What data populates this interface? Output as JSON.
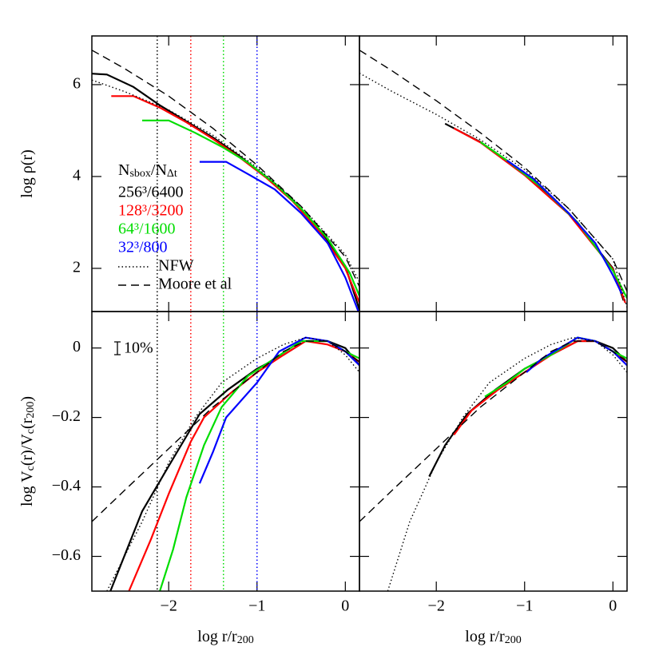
{
  "chart_data": [
    {
      "type": "line",
      "xlim": [
        -2.87,
        0.16
      ],
      "ylim": [
        1.06,
        7.06
      ],
      "xticks": [
        -2,
        -1,
        0
      ],
      "yticks": [
        2,
        4,
        6
      ],
      "show_xticklabels": false,
      "show_yticklabels": true,
      "ylabel_parts": [
        {
          "text": "log ρ(r)"
        }
      ],
      "vlines": [
        {
          "x": -2.13,
          "color": "#000000"
        },
        {
          "x": -1.75,
          "color": "#ff0000"
        },
        {
          "x": -1.38,
          "color": "#00dd00"
        },
        {
          "x": -1.0,
          "color": "#0000ff"
        }
      ],
      "legend_title_parts": [
        {
          "text": "N"
        },
        {
          "text": "sbox",
          "sub": true
        },
        {
          "text": "/N"
        },
        {
          "text": "Δt",
          "sub": true
        }
      ],
      "legend": "upper-left-middle",
      "series": [
        {
          "name": "256³/6400",
          "color": "#000000",
          "style": "solid",
          "x": [
            -2.87,
            -2.7,
            -2.4,
            -2.1,
            -1.8,
            -1.5,
            -1.2,
            -0.9,
            -0.6,
            -0.3,
            0,
            0.16
          ],
          "values": [
            6.24,
            6.22,
            5.95,
            5.55,
            5.2,
            4.85,
            4.45,
            4.0,
            3.5,
            2.85,
            2.05,
            1.1
          ]
        },
        {
          "name": "128³/3200",
          "color": "#ff0000",
          "style": "solid",
          "x": [
            -2.65,
            -2.4,
            -2.1,
            -1.8,
            -1.5,
            -1.2,
            -0.9,
            -0.6,
            -0.3,
            0,
            0.16
          ],
          "values": [
            5.75,
            5.75,
            5.5,
            5.18,
            4.82,
            4.42,
            3.98,
            3.47,
            2.82,
            2.0,
            1.25
          ]
        },
        {
          "name": "64³/1600",
          "color": "#00dd00",
          "style": "solid",
          "x": [
            -2.3,
            -2.0,
            -1.7,
            -1.4,
            -1.1,
            -0.8,
            -0.5,
            -0.2,
            0.05,
            0.16
          ],
          "values": [
            5.22,
            5.22,
            4.95,
            4.65,
            4.3,
            3.85,
            3.3,
            2.65,
            1.9,
            1.4
          ]
        },
        {
          "name": "32³/800",
          "color": "#0000ff",
          "style": "solid",
          "x": [
            -1.65,
            -1.35,
            -1.1,
            -0.8,
            -0.5,
            -0.2,
            0.0,
            0.15
          ],
          "values": [
            4.32,
            4.32,
            4.05,
            3.72,
            3.2,
            2.55,
            1.8,
            1.05
          ]
        },
        {
          "name": "NFW",
          "color": "#000000",
          "style": "dotted",
          "x": [
            -2.87,
            -2.5,
            -2.0,
            -1.5,
            -1.0,
            -0.5,
            0,
            0.16
          ],
          "values": [
            6.1,
            5.85,
            5.45,
            4.9,
            4.2,
            3.35,
            2.3,
            1.7
          ]
        },
        {
          "name": "Moore et al",
          "color": "#000000",
          "style": "dashed",
          "x": [
            -2.87,
            -2.5,
            -2.0,
            -1.5,
            -1.0,
            -0.5,
            0,
            0.16
          ],
          "values": [
            6.75,
            6.35,
            5.75,
            5.05,
            4.25,
            3.35,
            2.25,
            1.6
          ]
        }
      ]
    },
    {
      "type": "line",
      "xlim": [
        -2.87,
        0.16
      ],
      "ylim": [
        1.06,
        7.06
      ],
      "xticks": [
        -2,
        -1,
        0
      ],
      "yticks": [
        2,
        4,
        6
      ],
      "show_xticklabels": false,
      "show_yticklabels": false,
      "series": [
        {
          "color": "#000000",
          "style": "solid",
          "x": [
            -1.9,
            -1.5,
            -1.0,
            -0.5,
            0,
            0.12
          ],
          "values": [
            5.15,
            4.75,
            4.05,
            3.2,
            2.0,
            1.3
          ]
        },
        {
          "color": "#ff0000",
          "style": "solid",
          "x": [
            -1.8,
            -1.5,
            -1.0,
            -0.5,
            0,
            0.14
          ],
          "values": [
            5.05,
            4.74,
            4.03,
            3.18,
            1.98,
            1.25
          ]
        },
        {
          "color": "#00dd00",
          "style": "solid",
          "x": [
            -1.5,
            -1.2,
            -0.8,
            -0.4,
            0,
            0.16
          ],
          "values": [
            4.75,
            4.35,
            3.75,
            3.0,
            1.95,
            1.35
          ]
        },
        {
          "color": "#0000ff",
          "style": "solid",
          "x": [
            -1.2,
            -0.9,
            -0.5,
            -0.2,
            0.0,
            0.1
          ],
          "values": [
            4.35,
            3.95,
            3.2,
            2.55,
            1.85,
            1.45
          ]
        },
        {
          "color": "#000000",
          "style": "dotted",
          "x": [
            -2.87,
            -2.5,
            -2.0,
            -1.5,
            -1.0,
            -0.5,
            0,
            0.16
          ],
          "values": [
            6.25,
            5.85,
            5.35,
            4.8,
            4.15,
            3.3,
            2.2,
            1.15
          ]
        },
        {
          "color": "#000000",
          "style": "dashed",
          "x": [
            -2.87,
            -2.5,
            -2.0,
            -1.5,
            -1.0,
            -0.5,
            0,
            0.16
          ],
          "values": [
            6.75,
            6.3,
            5.65,
            4.95,
            4.2,
            3.3,
            2.2,
            1.5
          ]
        }
      ]
    },
    {
      "type": "line",
      "xlim": [
        -2.87,
        0.16
      ],
      "ylim": [
        -0.7,
        0.105
      ],
      "xticks": [
        {
          "value": -2,
          "label": "−2"
        },
        {
          "value": -1,
          "label": "−1"
        },
        0
      ],
      "yticks": [
        {
          "value": -0.6,
          "label": "−0.6"
        },
        {
          "value": -0.4,
          "label": "−0.4"
        },
        {
          "value": -0.2,
          "label": "−0.2"
        },
        0
      ],
      "show_xticklabels": true,
      "show_yticklabels": true,
      "xlabel_parts": [
        {
          "text": "log r/r"
        },
        {
          "text": "200",
          "sub": true
        }
      ],
      "ylabel_parts": [
        {
          "text": "log V"
        },
        {
          "text": "c",
          "sub": true
        },
        {
          "text": "(r)/V"
        },
        {
          "text": "c",
          "sub": true
        },
        {
          "text": "(r"
        },
        {
          "text": "200",
          "sub": true
        },
        {
          "text": ")"
        }
      ],
      "annotation": "10%",
      "vlines": [
        {
          "x": -2.13,
          "color": "#000000"
        },
        {
          "x": -1.75,
          "color": "#ff0000"
        },
        {
          "x": -1.38,
          "color": "#00dd00"
        },
        {
          "x": -1.0,
          "color": "#0000ff"
        }
      ],
      "series": [
        {
          "color": "#000000",
          "style": "solid",
          "x": [
            -2.66,
            -2.3,
            -2.0,
            -1.65,
            -1.33,
            -1.0,
            -0.7,
            -0.45,
            -0.2,
            0,
            0.16
          ],
          "values": [
            -0.7,
            -0.47,
            -0.34,
            -0.19,
            -0.12,
            -0.06,
            -0.02,
            0.02,
            0.02,
            0.0,
            -0.05
          ]
        },
        {
          "color": "#ff0000",
          "style": "solid",
          "x": [
            -2.45,
            -2.2,
            -2.0,
            -1.75,
            -1.6,
            -1.3,
            -1.0,
            -0.7,
            -0.45,
            -0.2,
            0,
            0.16
          ],
          "values": [
            -0.7,
            -0.55,
            -0.42,
            -0.27,
            -0.2,
            -0.13,
            -0.07,
            -0.02,
            0.02,
            0.01,
            -0.01,
            -0.04
          ]
        },
        {
          "color": "#00dd00",
          "style": "solid",
          "x": [
            -2.1,
            -1.95,
            -1.8,
            -1.6,
            -1.4,
            -1.1,
            -0.8,
            -0.5,
            -0.2,
            0,
            0.16
          ],
          "values": [
            -0.7,
            -0.58,
            -0.43,
            -0.28,
            -0.17,
            -0.08,
            -0.03,
            0.02,
            0.02,
            -0.01,
            -0.03
          ]
        },
        {
          "color": "#0000ff",
          "style": "solid",
          "x": [
            -1.65,
            -1.5,
            -1.35,
            -1.0,
            -0.75,
            -0.45,
            -0.2,
            0,
            0.16
          ],
          "values": [
            -0.39,
            -0.3,
            -0.2,
            -0.1,
            -0.01,
            0.03,
            0.02,
            -0.01,
            -0.05
          ]
        },
        {
          "color": "#000000",
          "style": "dotted",
          "x": [
            -2.7,
            -2.3,
            -2.0,
            -1.7,
            -1.4,
            -1.0,
            -0.7,
            -0.45,
            -0.2,
            0,
            0.16
          ],
          "values": [
            -0.7,
            -0.5,
            -0.33,
            -0.2,
            -0.1,
            -0.03,
            0.01,
            0.03,
            0.02,
            -0.02,
            -0.07
          ]
        },
        {
          "color": "#000000",
          "style": "dashed",
          "x": [
            -2.87,
            -2.5,
            -2.0,
            -1.5,
            -1.0,
            -0.7,
            -0.45,
            -0.2,
            0,
            0.16
          ],
          "values": [
            -0.5,
            -0.41,
            -0.29,
            -0.17,
            -0.07,
            -0.01,
            0.02,
            0.02,
            -0.01,
            -0.04
          ]
        }
      ]
    },
    {
      "type": "line",
      "xlim": [
        -2.87,
        0.16
      ],
      "ylim": [
        -0.7,
        0.105
      ],
      "xticks": [
        {
          "value": -2,
          "label": "−2"
        },
        {
          "value": -1,
          "label": "−1"
        },
        0
      ],
      "yticks": [
        -0.6,
        -0.4,
        -0.2,
        0
      ],
      "show_xticklabels": true,
      "show_yticklabels": false,
      "xlabel_parts": [
        {
          "text": "log r/r"
        },
        {
          "text": "200",
          "sub": true
        }
      ],
      "series": [
        {
          "color": "#000000",
          "style": "solid",
          "x": [
            -2.08,
            -1.9,
            -1.65,
            -1.33,
            -1.0,
            -0.7,
            -0.4,
            -0.2,
            0,
            0.16
          ],
          "values": [
            -0.37,
            -0.28,
            -0.19,
            -0.12,
            -0.06,
            -0.02,
            0.02,
            0.02,
            0.0,
            -0.04
          ]
        },
        {
          "color": "#ff0000",
          "style": "solid",
          "x": [
            -1.8,
            -1.6,
            -1.3,
            -1.0,
            -0.7,
            -0.4,
            -0.2,
            0,
            0.16
          ],
          "values": [
            -0.25,
            -0.18,
            -0.12,
            -0.07,
            -0.02,
            0.02,
            0.02,
            -0.01,
            -0.04
          ]
        },
        {
          "color": "#00dd00",
          "style": "solid",
          "x": [
            -1.45,
            -1.2,
            -1.0,
            -0.7,
            -0.4,
            -0.2,
            0,
            0.16
          ],
          "values": [
            -0.14,
            -0.1,
            -0.06,
            -0.02,
            0.03,
            0.02,
            -0.01,
            -0.03
          ]
        },
        {
          "color": "#0000ff",
          "style": "solid",
          "x": [
            -0.98,
            -0.8,
            -0.6,
            -0.4,
            -0.2,
            0,
            0.16
          ],
          "values": [
            -0.07,
            -0.03,
            0.0,
            0.03,
            0.02,
            -0.01,
            -0.05
          ]
        },
        {
          "color": "#000000",
          "style": "dotted",
          "x": [
            -2.55,
            -2.3,
            -2.0,
            -1.7,
            -1.4,
            -1.0,
            -0.7,
            -0.45,
            -0.2,
            0,
            0.16
          ],
          "values": [
            -0.7,
            -0.5,
            -0.33,
            -0.2,
            -0.1,
            -0.03,
            0.01,
            0.03,
            0.02,
            -0.02,
            -0.07
          ]
        },
        {
          "color": "#000000",
          "style": "dashed",
          "x": [
            -2.87,
            -2.5,
            -2.0,
            -1.5,
            -1.0,
            -0.7,
            -0.45,
            -0.2,
            0,
            0.16
          ],
          "values": [
            -0.5,
            -0.41,
            -0.29,
            -0.17,
            -0.07,
            -0.01,
            0.02,
            0.02,
            -0.01,
            -0.04
          ]
        }
      ]
    }
  ]
}
